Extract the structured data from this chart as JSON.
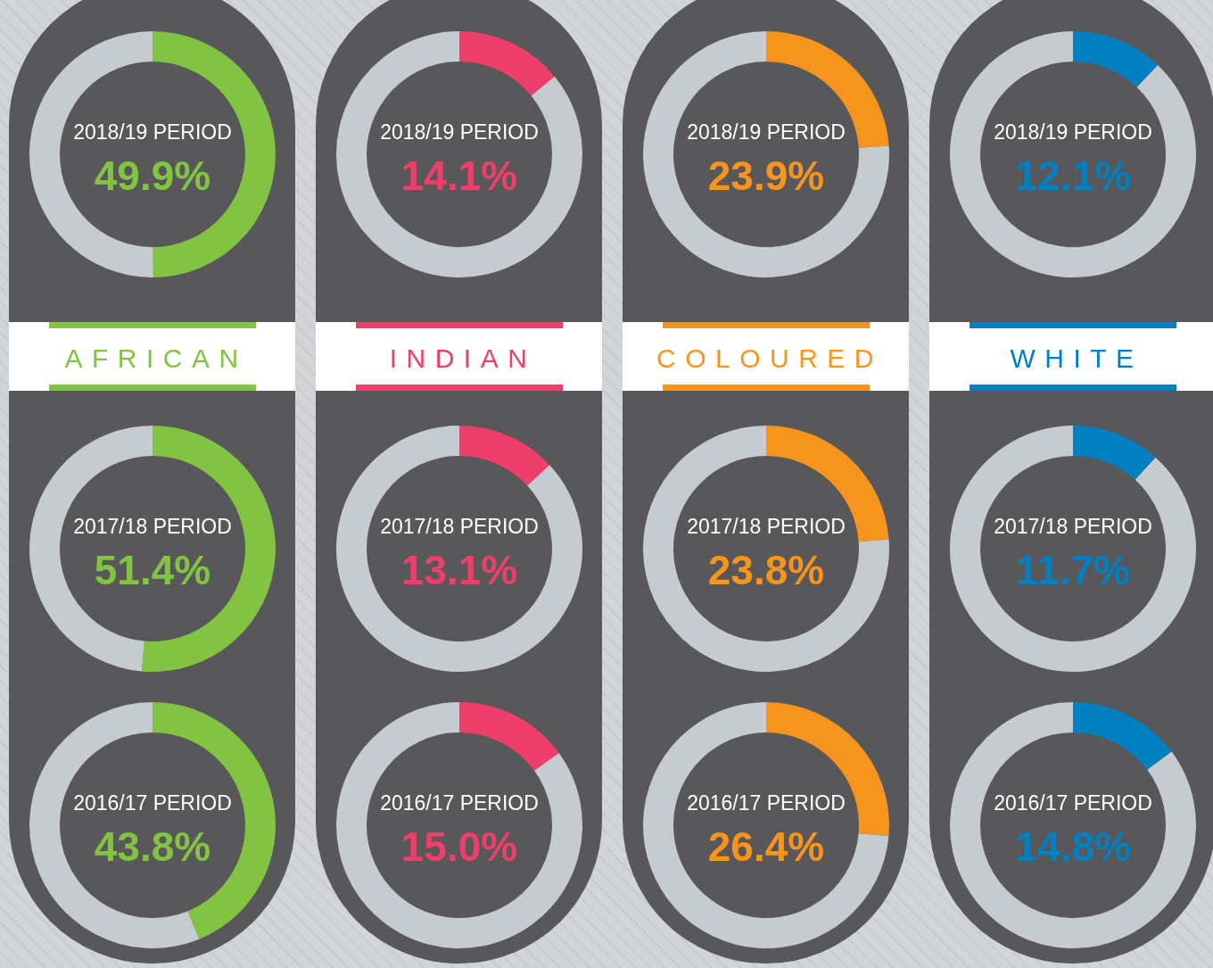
{
  "chart_data": [
    {
      "type": "donut",
      "title": "2018/19 PERIOD",
      "subtitle": "AFRICAN",
      "categories": [
        null,
        null
      ],
      "values": [
        49.9,
        50.1
      ],
      "colors": [
        "#82c341",
        "#c5cbce"
      ],
      "annotations": [
        "49.9%"
      ]
    },
    {
      "type": "donut",
      "title": "2017/18 PERIOD",
      "categories": [
        null,
        null
      ],
      "values": [
        51.4,
        48.6
      ],
      "colors": [
        "#82c341",
        "#c5cbce"
      ],
      "annotations": [
        "51.4%"
      ]
    },
    {
      "type": "donut",
      "title": "2016/17 PERIOD",
      "categories": [
        null,
        null
      ],
      "values": [
        43.8,
        56.2
      ],
      "colors": [
        "#82c341",
        "#c5cbce"
      ],
      "annotations": [
        "43.8%"
      ]
    },
    {
      "type": "donut",
      "title": "2018/19 PERIOD",
      "subtitle": "INDIAN",
      "categories": [
        null,
        null
      ],
      "values": [
        14.1,
        85.9
      ],
      "colors": [
        "#ef3e6a",
        "#c5cbce"
      ],
      "annotations": [
        "14.1%"
      ]
    },
    {
      "type": "donut",
      "title": "2017/18 PERIOD",
      "categories": [
        null,
        null
      ],
      "values": [
        13.1,
        86.9
      ],
      "colors": [
        "#ef3e6a",
        "#c5cbce"
      ],
      "annotations": [
        "13.1%"
      ]
    },
    {
      "type": "donut",
      "title": "2016/17 PERIOD",
      "categories": [
        null,
        null
      ],
      "values": [
        15.0,
        85.0
      ],
      "colors": [
        "#ef3e6a",
        "#c5cbce"
      ],
      "annotations": [
        "15.0%"
      ]
    },
    {
      "type": "donut",
      "title": "2018/19 PERIOD",
      "subtitle": "COLOURED",
      "categories": [
        null,
        null
      ],
      "values": [
        23.9,
        76.1
      ],
      "colors": [
        "#f7941d",
        "#c5cbce"
      ],
      "annotations": [
        "23.9%"
      ]
    },
    {
      "type": "donut",
      "title": "2017/18 PERIOD",
      "categories": [
        null,
        null
      ],
      "values": [
        23.8,
        76.2
      ],
      "colors": [
        "#f7941d",
        "#c5cbce"
      ],
      "annotations": [
        "23.8%"
      ]
    },
    {
      "type": "donut",
      "title": "2016/17 PERIOD",
      "categories": [
        null,
        null
      ],
      "values": [
        26.4,
        73.6
      ],
      "colors": [
        "#f7941d",
        "#c5cbce"
      ],
      "annotations": [
        "26.4%"
      ]
    },
    {
      "type": "donut",
      "title": "2018/19 PERIOD",
      "subtitle": "WHITE",
      "categories": [
        null,
        null
      ],
      "values": [
        12.1,
        87.9
      ],
      "colors": [
        "#0080c0",
        "#c5cbce"
      ],
      "annotations": [
        "12.1%"
      ]
    },
    {
      "type": "donut",
      "title": "2017/18 PERIOD",
      "categories": [
        null,
        null
      ],
      "values": [
        11.7,
        88.3
      ],
      "colors": [
        "#0080c0",
        "#c5cbce"
      ],
      "annotations": [
        "11.7%"
      ]
    },
    {
      "type": "donut",
      "title": "2016/17 PERIOD",
      "categories": [
        null,
        null
      ],
      "values": [
        14.8,
        85.2
      ],
      "colors": [
        "#0080c0",
        "#c5cbce"
      ],
      "annotations": [
        "14.8%"
      ]
    }
  ]
}
